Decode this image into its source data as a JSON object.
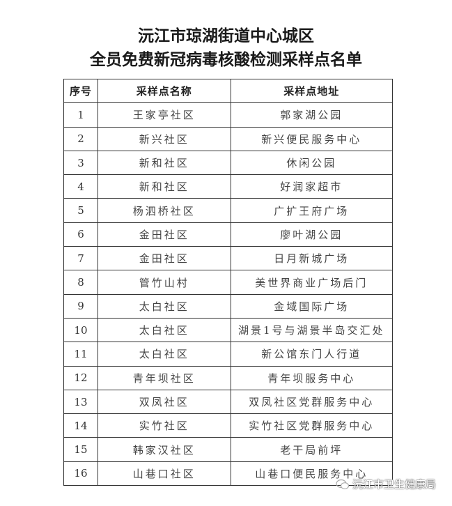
{
  "title_line1": "沅江市琼湖街道中心城区",
  "title_line2": "全员免费新冠病毒核酸检测采样点名单",
  "table": {
    "headers": [
      "序号",
      "采样点名称",
      "采样点地址"
    ],
    "rows": [
      [
        "1",
        "王家亭社区",
        "郭家湖公园"
      ],
      [
        "2",
        "新兴社区",
        "新兴便民服务中心"
      ],
      [
        "3",
        "新和社区",
        "休闲公园"
      ],
      [
        "4",
        "新和社区",
        "好润家超市"
      ],
      [
        "5",
        "杨泗桥社区",
        "广扩王府广场"
      ],
      [
        "6",
        "金田社区",
        "廖叶湖公园"
      ],
      [
        "7",
        "金田社区",
        "日月新城广场"
      ],
      [
        "8",
        "管竹山村",
        "美世界商业广场后门"
      ],
      [
        "9",
        "太白社区",
        "金域国际广场"
      ],
      [
        "10",
        "太白社区",
        "湖景1号与湖景半岛交汇处"
      ],
      [
        "11",
        "太白社区",
        "新公馆东门人行道"
      ],
      [
        "12",
        "青年坝社区",
        "青年坝服务中心"
      ],
      [
        "13",
        "双凤社区",
        "双凤社区党群服务中心"
      ],
      [
        "14",
        "实竹社区",
        "实竹社区党群服务中心"
      ],
      [
        "15",
        "韩家汉社区",
        "老干局前坪"
      ],
      [
        "16",
        "山巷口社区",
        "山巷口便民服务中心"
      ]
    ]
  },
  "watermark": {
    "text": "沅江市卫生健康局",
    "icon": "wechat-icon"
  }
}
